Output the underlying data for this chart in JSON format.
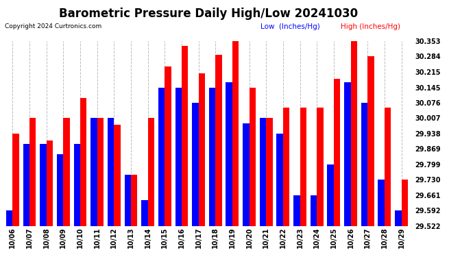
{
  "title": "Barometric Pressure Daily High/Low 20241030",
  "copyright": "Copyright 2024 Curtronics.com",
  "legend_low": "Low  (Inches/Hg)",
  "legend_high": "High (Inches/Hg)",
  "dates": [
    "10/06",
    "10/07",
    "10/08",
    "10/09",
    "10/10",
    "10/11",
    "10/12",
    "10/13",
    "10/14",
    "10/15",
    "10/16",
    "10/17",
    "10/18",
    "10/19",
    "10/20",
    "10/21",
    "10/22",
    "10/23",
    "10/24",
    "10/25",
    "10/26",
    "10/27",
    "10/28",
    "10/29"
  ],
  "high": [
    29.938,
    30.007,
    29.907,
    30.007,
    30.099,
    30.007,
    29.976,
    29.753,
    30.007,
    30.238,
    30.33,
    30.207,
    30.291,
    30.353,
    30.145,
    30.007,
    30.053,
    30.053,
    30.053,
    30.184,
    30.353,
    30.284,
    30.053,
    29.73
  ],
  "low": [
    29.592,
    29.892,
    29.892,
    29.846,
    29.892,
    30.007,
    30.007,
    29.753,
    29.638,
    30.145,
    30.145,
    30.076,
    30.145,
    30.168,
    29.984,
    30.007,
    29.938,
    29.661,
    29.661,
    29.799,
    30.168,
    30.076,
    29.73,
    29.592
  ],
  "ylim_min": 29.522,
  "ylim_max": 30.353,
  "yticks": [
    29.522,
    29.592,
    29.661,
    29.73,
    29.799,
    29.869,
    29.938,
    30.007,
    30.076,
    30.145,
    30.215,
    30.284,
    30.353
  ],
  "color_high": "#FF0000",
  "color_low": "#0000FF",
  "background_color": "#FFFFFF",
  "bar_width": 0.38,
  "title_fontsize": 12,
  "tick_fontsize": 7,
  "label_fontsize": 7.5
}
